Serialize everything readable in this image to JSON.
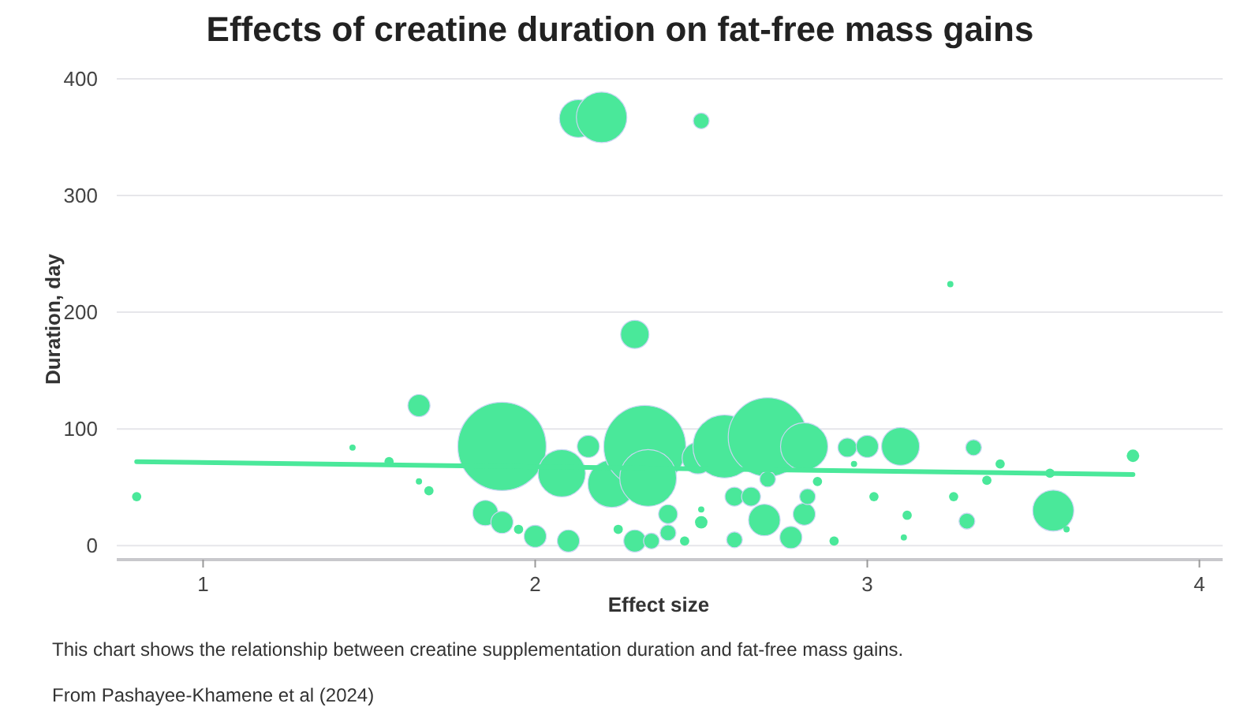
{
  "chart_data": {
    "type": "bubble",
    "title": "Effects of creatine duration on fat-free mass gains",
    "xlabel": "Effect size",
    "ylabel": "Duration, day",
    "annotations": [
      "This chart shows the relationship between creatine supplementation duration and fat-free mass gains.",
      "From Pashayee-Khamene et al (2024)"
    ],
    "xlim": [
      0.74,
      4.07
    ],
    "xticks": [
      1,
      2,
      3,
      4
    ],
    "ylim": [
      -12,
      400
    ],
    "yticks": [
      0,
      100,
      200,
      300,
      400
    ],
    "grid": "y",
    "series": [
      {
        "color": "#4ae89a",
        "x": [
          0.8,
          2.13,
          2.2,
          2.5,
          2.3,
          3.25,
          1.65,
          1.45,
          1.56,
          1.65,
          1.68,
          1.9,
          1.85,
          1.9,
          1.95,
          2.0,
          2.08,
          2.1,
          2.16,
          2.23,
          2.33,
          2.34,
          2.25,
          2.3,
          2.35,
          2.4,
          2.4,
          2.45,
          2.5,
          2.5,
          2.49,
          2.57,
          2.7,
          2.81,
          2.6,
          2.6,
          2.65,
          2.69,
          2.7,
          2.77,
          2.81,
          2.82,
          2.85,
          2.9,
          2.94,
          2.96,
          3.0,
          3.02,
          3.1,
          3.12,
          3.11,
          3.32,
          3.4,
          3.36,
          3.26,
          3.3,
          3.56,
          3.6,
          3.55,
          3.8
        ],
        "values": [
          42,
          366,
          367,
          364,
          181,
          224,
          120,
          84,
          72,
          55,
          47,
          85,
          28,
          20,
          14,
          8,
          62,
          4,
          85,
          53,
          85,
          58,
          14,
          4,
          4,
          11,
          27,
          4,
          31,
          20,
          75,
          85,
          93,
          85,
          5,
          42,
          42,
          22,
          57,
          7,
          27,
          42,
          55,
          4,
          84,
          70,
          85,
          42,
          85,
          26,
          7,
          84,
          70,
          56,
          42,
          21,
          30,
          14,
          62,
          77
        ],
        "sizes": [
          0.011,
          0.184,
          0.327,
          0.032,
          0.103,
          0.005,
          0.063,
          0.005,
          0.011,
          0.005,
          0.011,
          1,
          0.082,
          0.063,
          0.011,
          0.063,
          0.287,
          0.063,
          0.063,
          0.287,
          0.862,
          0.413,
          0.011,
          0.063,
          0.032,
          0.032,
          0.046,
          0.011,
          0.005,
          0.02,
          0.128,
          0.51,
          0.797,
          0.287,
          0.032,
          0.046,
          0.046,
          0.128,
          0.032,
          0.063,
          0.063,
          0.032,
          0.011,
          0.011,
          0.046,
          0.005,
          0.063,
          0.011,
          0.184,
          0.011,
          0.005,
          0.032,
          0.011,
          0.011,
          0.011,
          0.032,
          0.216,
          0.005,
          0.011,
          0.02
        ]
      },
      {
        "type": "line",
        "color": "#4ae89a",
        "x": [
          0.8,
          3.8
        ],
        "values": [
          72,
          61
        ]
      }
    ]
  }
}
